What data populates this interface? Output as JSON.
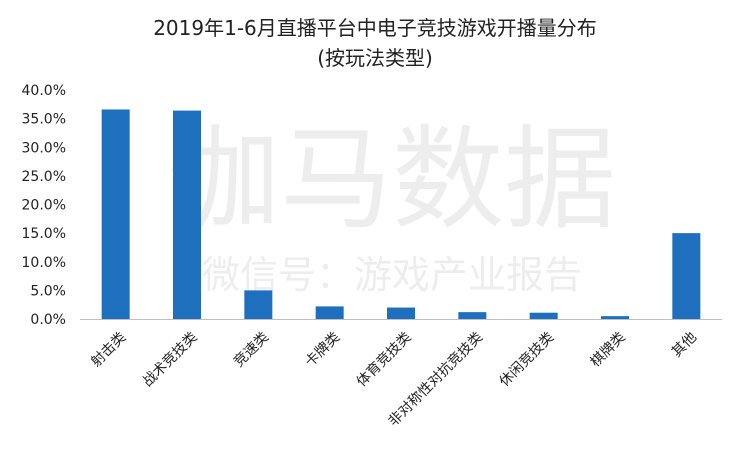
{
  "title": "2019年1-6月直播平台中电子竞技游戏开播量分布",
  "subtitle": "(按玩法类型)",
  "watermark": {
    "main": "伽马数据",
    "sub": "微信号：游戏产业报告"
  },
  "colors": {
    "bar": "#1F6FBF",
    "axis": "#bfbfbf",
    "text": "#222222"
  },
  "chart_data": {
    "type": "bar",
    "title": "2019年1-6月直播平台中电子竞技游戏开播量分布",
    "subtitle": "(按玩法类型)",
    "categories": [
      "射击类",
      "战术竞技类",
      "竞速类",
      "卡牌类",
      "体育竞技类",
      "非对称性对抗竞技类",
      "休闲竞技类",
      "棋牌类",
      "其他"
    ],
    "values": [
      36.6,
      36.4,
      5.0,
      2.2,
      2.0,
      1.2,
      1.1,
      0.5,
      15.0
    ],
    "ylim": [
      0,
      40
    ],
    "yticks": [
      0,
      5,
      10,
      15,
      20,
      25,
      30,
      35,
      40
    ],
    "ytick_labels": [
      "0.0%",
      "5.0%",
      "10.0%",
      "15.0%",
      "20.0%",
      "25.0%",
      "30.0%",
      "35.0%",
      "40.0%"
    ],
    "grid": false,
    "legend": "none"
  }
}
